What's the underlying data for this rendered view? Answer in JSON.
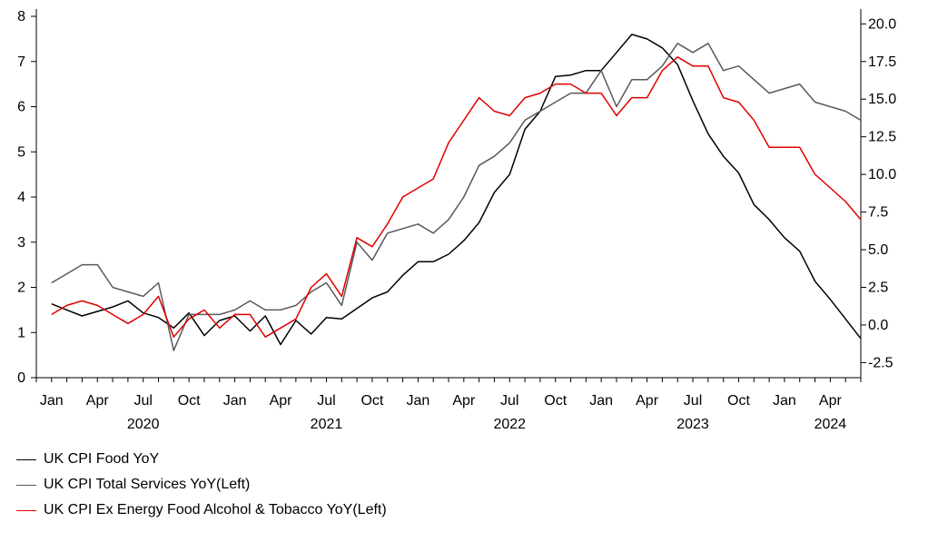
{
  "chart_data": {
    "type": "line",
    "x_start": "2019-12",
    "x_end": "2024-06",
    "x_ticks": [
      {
        "month": "2020-01",
        "label": "Jan"
      },
      {
        "month": "2020-04",
        "label": "Apr"
      },
      {
        "month": "2020-07",
        "label": "Jul"
      },
      {
        "month": "2020-10",
        "label": "Oct"
      },
      {
        "month": "2021-01",
        "label": "Jan"
      },
      {
        "month": "2021-04",
        "label": "Apr"
      },
      {
        "month": "2021-07",
        "label": "Jul"
      },
      {
        "month": "2021-10",
        "label": "Oct"
      },
      {
        "month": "2022-01",
        "label": "Jan"
      },
      {
        "month": "2022-04",
        "label": "Apr"
      },
      {
        "month": "2022-07",
        "label": "Jul"
      },
      {
        "month": "2022-10",
        "label": "Oct"
      },
      {
        "month": "2023-01",
        "label": "Jan"
      },
      {
        "month": "2023-04",
        "label": "Apr"
      },
      {
        "month": "2023-07",
        "label": "Jul"
      },
      {
        "month": "2023-10",
        "label": "Oct"
      },
      {
        "month": "2024-01",
        "label": "Jan"
      },
      {
        "month": "2024-04",
        "label": "Apr"
      }
    ],
    "year_labels": [
      {
        "month": "2020-07",
        "label": "2020"
      },
      {
        "month": "2021-07",
        "label": "2021"
      },
      {
        "month": "2022-07",
        "label": "2022"
      },
      {
        "month": "2023-07",
        "label": "2023"
      },
      {
        "month": "2024-04",
        "label": "2024"
      }
    ],
    "y_left": {
      "min": 0,
      "max": 8,
      "ticks": [
        0,
        1,
        2,
        3,
        4,
        5,
        6,
        7,
        8
      ]
    },
    "y_right": {
      "min": -3.5,
      "max": 20.5,
      "ticks": [
        "-2.5",
        "0.0",
        "2.5",
        "5.0",
        "7.5",
        "10.0",
        "12.5",
        "15.0",
        "17.5",
        "20.0"
      ]
    },
    "grid": false,
    "legend_position": "bottom-left",
    "series": [
      {
        "name": "UK CPI Food YoY",
        "axis": "right",
        "color": "#000000",
        "start": "2020-01",
        "values": [
          1.4,
          1.0,
          0.6,
          0.9,
          1.2,
          1.6,
          0.8,
          0.5,
          -0.2,
          0.8,
          -0.7,
          0.3,
          0.6,
          -0.4,
          0.6,
          -1.3,
          0.3,
          -0.6,
          0.5,
          0.4,
          1.1,
          1.8,
          2.2,
          3.3,
          4.2,
          4.2,
          4.7,
          5.6,
          6.8,
          8.8,
          10.0,
          13.0,
          14.2,
          16.5,
          16.6,
          16.9,
          16.9,
          18.1,
          19.3,
          19.0,
          18.4,
          17.3,
          14.9,
          12.7,
          11.2,
          10.1,
          8.0,
          7.0,
          5.8,
          4.9,
          2.9,
          1.7,
          0.4,
          -0.9
        ]
      },
      {
        "name": "UK CPI Total Services YoY(Left)",
        "axis": "left",
        "color": "#595959",
        "start": "2020-01",
        "values": [
          2.1,
          2.3,
          2.5,
          2.5,
          2.0,
          1.9,
          1.8,
          2.1,
          0.6,
          1.4,
          1.4,
          1.4,
          1.5,
          1.7,
          1.5,
          1.5,
          1.6,
          1.9,
          2.1,
          1.6,
          3.0,
          2.6,
          3.2,
          3.3,
          3.4,
          3.2,
          3.5,
          4.0,
          4.7,
          4.9,
          5.2,
          5.7,
          5.9,
          6.1,
          6.3,
          6.3,
          6.8,
          6.0,
          6.6,
          6.6,
          6.9,
          7.4,
          7.2,
          7.4,
          6.8,
          6.9,
          6.6,
          6.3,
          6.4,
          6.5,
          6.1,
          6.0,
          5.9,
          5.7
        ]
      },
      {
        "name": "UK CPI Ex Energy Food Alcohol & Tobacco YoY(Left)",
        "axis": "left",
        "color": "#e00000",
        "start": "2020-01",
        "values": [
          1.4,
          1.6,
          1.7,
          1.6,
          1.4,
          1.2,
          1.4,
          1.8,
          0.9,
          1.3,
          1.5,
          1.1,
          1.4,
          1.4,
          0.9,
          1.1,
          1.3,
          2.0,
          2.3,
          1.8,
          3.1,
          2.9,
          3.4,
          4.0,
          4.2,
          4.4,
          5.2,
          5.7,
          6.2,
          5.9,
          5.8,
          6.2,
          6.3,
          6.5,
          6.5,
          6.3,
          6.3,
          5.8,
          6.2,
          6.2,
          6.8,
          7.1,
          6.9,
          6.9,
          6.2,
          6.1,
          5.7,
          5.1,
          5.1,
          5.1,
          4.5,
          4.2,
          3.9,
          3.5
        ]
      }
    ]
  },
  "legend": {
    "items": [
      {
        "label": "UK CPI Food YoY",
        "color": "#000000"
      },
      {
        "label": "UK CPI Total Services YoY(Left)",
        "color": "#595959"
      },
      {
        "label": "UK CPI Ex Energy Food Alcohol & Tobacco YoY(Left)",
        "color": "#e00000"
      }
    ]
  }
}
